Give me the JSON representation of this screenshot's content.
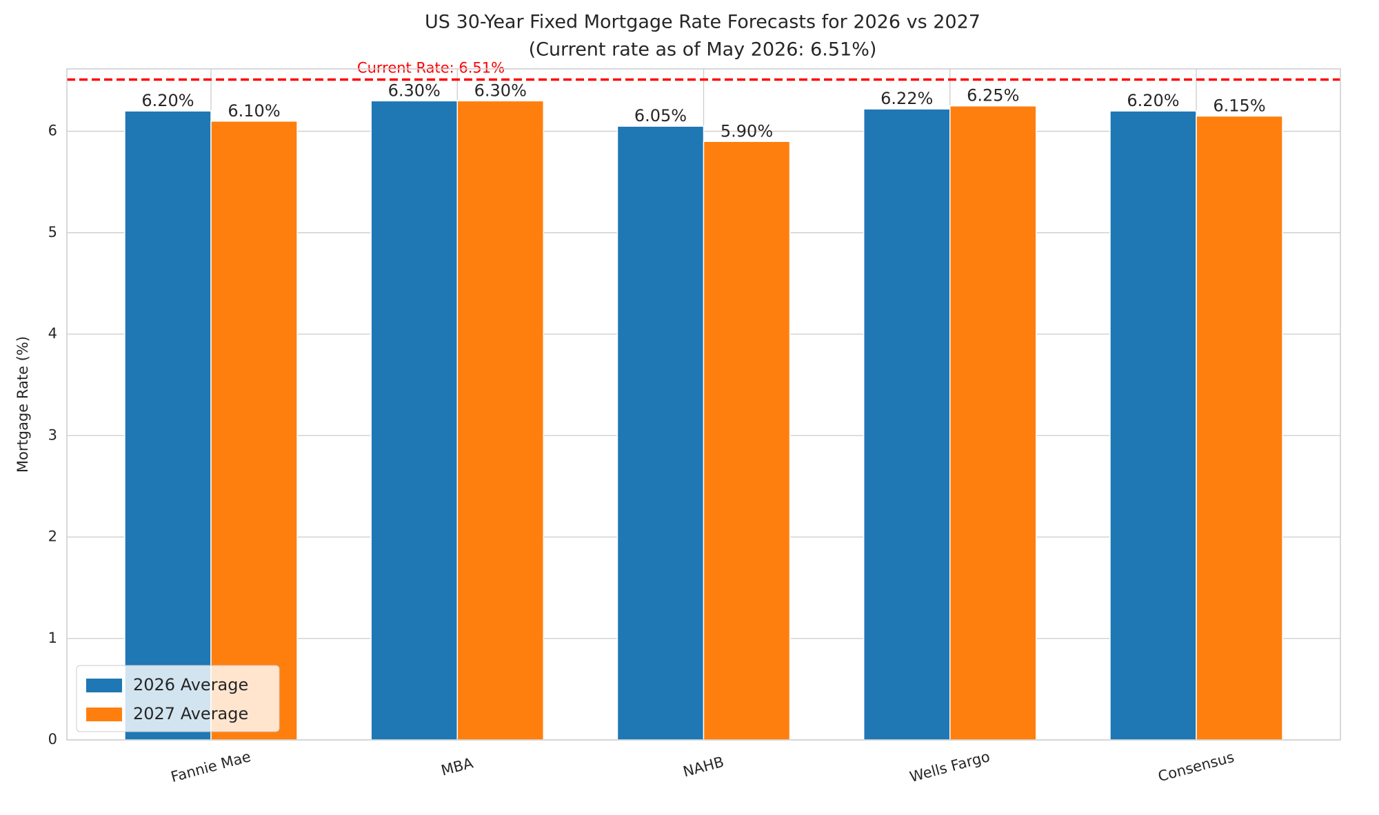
{
  "chart_data": {
    "type": "bar",
    "title": "US 30-Year Fixed Mortgage Rate Forecasts for 2026 vs 2027",
    "subtitle": "(Current rate as of May 2026: 6.51%)",
    "y_label": "Mortgage Rate (%)",
    "categories": [
      "Fannie Mae",
      "MBA",
      "NAHB",
      "Wells Fargo",
      "Consensus"
    ],
    "series": [
      {
        "name": "2026 Average",
        "color": "#1f77b4",
        "values": [
          6.2,
          6.3,
          6.05,
          6.22,
          6.2
        ],
        "value_labels": [
          "6.20%",
          "6.30%",
          "6.05%",
          "6.22%",
          "6.20%"
        ]
      },
      {
        "name": "2027 Average",
        "color": "#ff7f0e",
        "values": [
          6.1,
          6.3,
          5.9,
          6.25,
          6.15
        ],
        "value_labels": [
          "6.10%",
          "6.30%",
          "5.90%",
          "6.25%",
          "6.15%"
        ]
      }
    ],
    "reference_line": {
      "value": 6.51,
      "label": "Current Rate: 6.51%",
      "color": "#ff0000"
    },
    "ylim": [
      0,
      6.615
    ],
    "yticks": [
      0,
      1,
      2,
      3,
      4,
      5,
      6
    ],
    "grid": true,
    "legend": "lower left"
  }
}
